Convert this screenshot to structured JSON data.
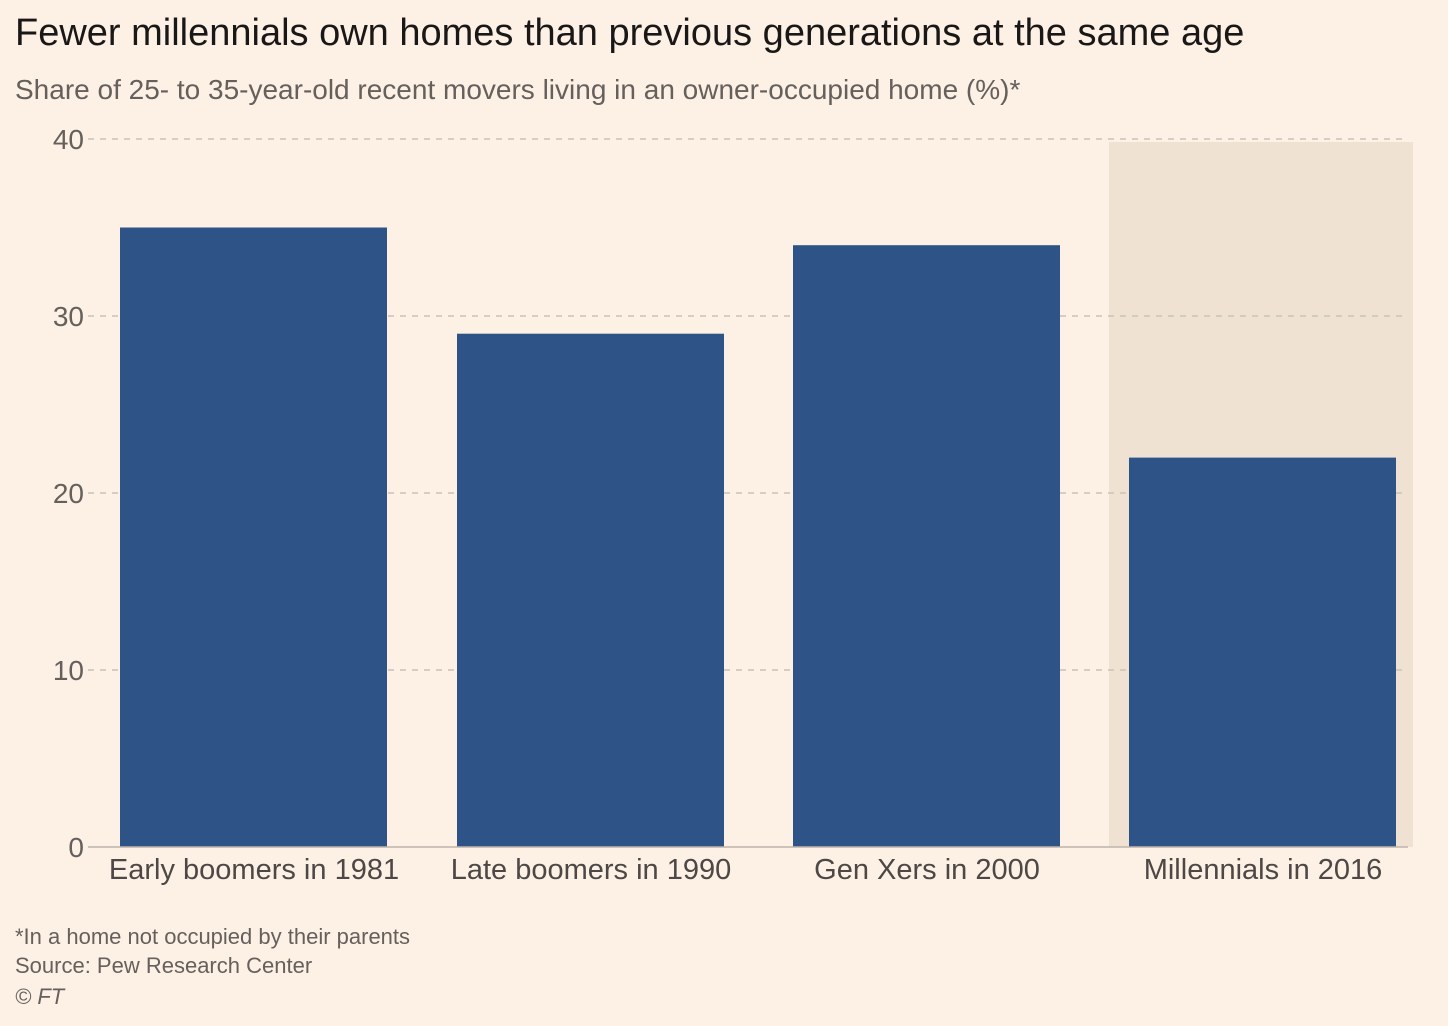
{
  "chart_data": {
    "type": "bar",
    "title": "Fewer millennials own homes than previous generations at the same age",
    "subtitle": "Share of 25- to 35-year-old recent movers living in an owner-occupied home (%)*",
    "categories": [
      "Early boomers in 1981",
      "Late boomers in 1990",
      "Gen Xers in 2000",
      "Millennials in 2016"
    ],
    "values": [
      35,
      29,
      34,
      22
    ],
    "ylim": [
      0,
      40
    ],
    "yticks": [
      0,
      10,
      20,
      30,
      40
    ],
    "ytick_labels": [
      "0",
      "10",
      "20",
      "30",
      "40"
    ],
    "highlighted_category": "Millennials in 2016",
    "grid": true,
    "colors": {
      "bar": "#2e5487",
      "highlight_band": "#f0e2d3",
      "background": "#fdf1e6",
      "grid": "#c9c1b9"
    }
  },
  "footnotes": {
    "note": "*In a home not occupied by their parents",
    "source": "Source: Pew Research Center",
    "credit": "© FT"
  }
}
